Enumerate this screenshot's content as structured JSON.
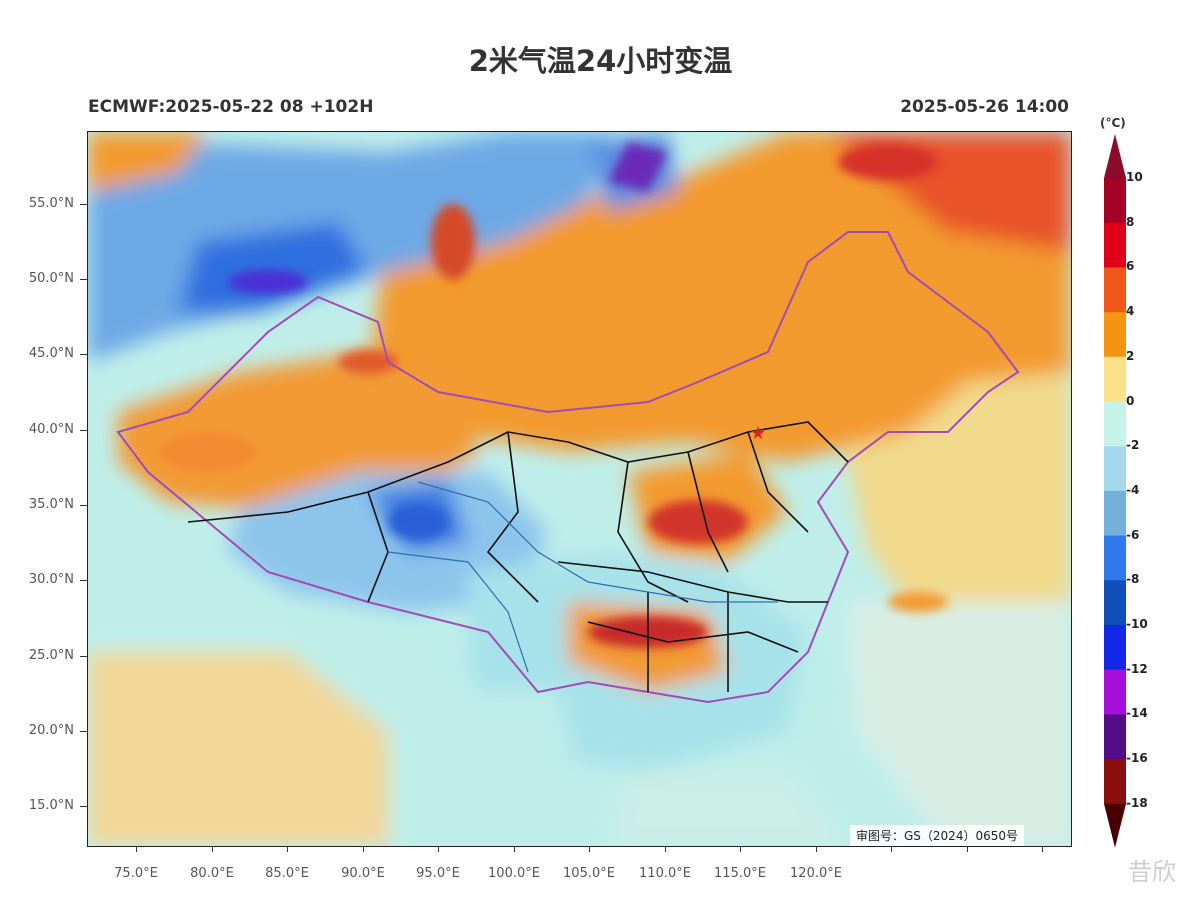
{
  "title": "2米气温24小时变温",
  "subtitle_left": "ECMWF:2025-05-22 08 +102H",
  "subtitle_right": "2025-05-26 14:00",
  "colorbar": {
    "unit": "(°C)",
    "labels": [
      "10",
      "8",
      "6",
      "4",
      "2",
      "0",
      "-2",
      "-4",
      "-6",
      "-8",
      "-10",
      "-12",
      "-14",
      "-16",
      "-18"
    ],
    "colors": [
      "#a50026",
      "#e00018",
      "#f0581a",
      "#f59413",
      "#fde08a",
      "#c7f2e6",
      "#a6d8ee",
      "#74b0dc",
      "#2f79ea",
      "#0e4fb9",
      "#1327e6",
      "#a50fd9",
      "#520c8a",
      "#8a0e0e"
    ],
    "top_triangle_color": "#8c0a2a",
    "bottom_triangle_color": "#4a0000"
  },
  "axes": {
    "lat_labels": [
      "55.0°N",
      "50.0°N",
      "45.0°N",
      "40.0°N",
      "35.0°N",
      "30.0°N",
      "25.0°N",
      "20.0°N",
      "15.0°N"
    ],
    "lon_labels": [
      "75.0°E",
      "80.0°E",
      "85.0°E",
      "90.0°E",
      "95.0°E",
      "100.0°E",
      "105.0°E",
      "110.0°E",
      "115.0°E",
      "120.0°E"
    ]
  },
  "approval_text": "审图号：GS（2024）0650号",
  "watermark_text": "昔欣"
}
